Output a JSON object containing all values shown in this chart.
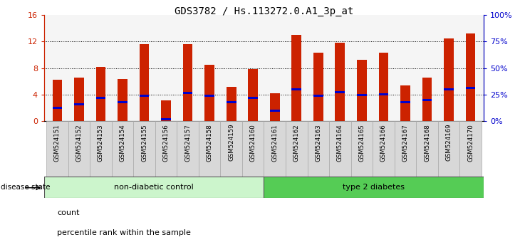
{
  "title": "GDS3782 / Hs.113272.0.A1_3p_at",
  "samples": [
    "GSM524151",
    "GSM524152",
    "GSM524153",
    "GSM524154",
    "GSM524155",
    "GSM524156",
    "GSM524157",
    "GSM524158",
    "GSM524159",
    "GSM524160",
    "GSM524161",
    "GSM524162",
    "GSM524163",
    "GSM524164",
    "GSM524165",
    "GSM524166",
    "GSM524167",
    "GSM524168",
    "GSM524169",
    "GSM524170"
  ],
  "count_values": [
    6.2,
    6.6,
    8.2,
    6.3,
    11.6,
    3.1,
    11.6,
    8.5,
    5.2,
    7.8,
    4.2,
    13.0,
    10.3,
    11.8,
    9.2,
    10.3,
    5.4,
    6.6,
    12.5,
    13.2
  ],
  "percentile_values": [
    2.0,
    2.5,
    3.5,
    2.8,
    3.8,
    0.3,
    4.2,
    3.8,
    2.8,
    3.5,
    1.5,
    4.8,
    3.8,
    4.4,
    3.9,
    4.0,
    2.8,
    3.2,
    4.8,
    5.0
  ],
  "non_diabetic_count": 10,
  "type2_count": 10,
  "group_labels": [
    "non-diabetic control",
    "type 2 diabetes"
  ],
  "group_colors": [
    "#ccf5cc",
    "#55cc55"
  ],
  "bar_color": "#cc2200",
  "marker_color": "#0000cc",
  "ylim_left": [
    0,
    16
  ],
  "ylim_right": [
    0,
    100
  ],
  "yticks_left": [
    0,
    4,
    8,
    12,
    16
  ],
  "yticks_right": [
    0,
    25,
    50,
    75,
    100
  ],
  "ytick_labels_right": [
    "0%",
    "25%",
    "50%",
    "75%",
    "100%"
  ],
  "grid_values": [
    4,
    8,
    12
  ],
  "bar_width": 0.45,
  "disease_state_label": "disease state",
  "legend_count_label": "count",
  "legend_percentile_label": "percentile rank within the sample",
  "title_fontsize": 10,
  "axis_color_left": "#cc2200",
  "axis_color_right": "#0000cc"
}
